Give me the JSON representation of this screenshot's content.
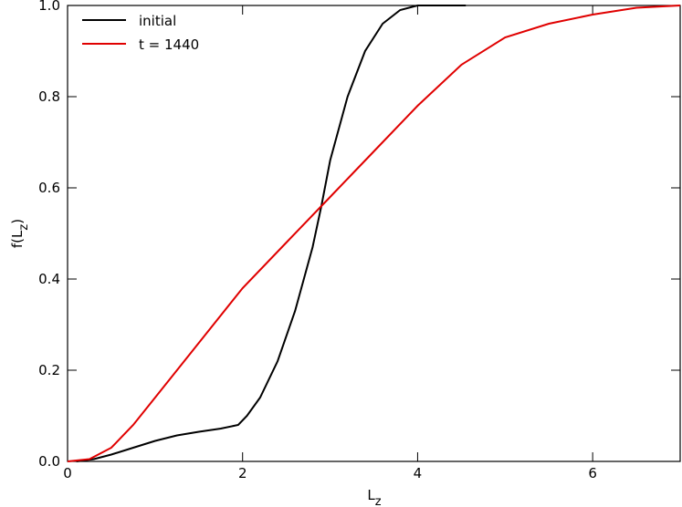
{
  "chart_data": {
    "type": "line",
    "xlabel": {
      "base": "L",
      "sub": "z"
    },
    "ylabel": {
      "prefix": "f(L",
      "sub": "z",
      "suffix": ")"
    },
    "xlim": [
      0,
      7
    ],
    "xticks": [
      0,
      2,
      4,
      6
    ],
    "ylim": [
      0,
      1
    ],
    "yticks": [
      {
        "value": 0,
        "label": "0.0"
      },
      0.2,
      0.4,
      0.6,
      0.8,
      {
        "value": 1,
        "label": "1.0"
      }
    ],
    "legend": "upper left",
    "series": [
      {
        "name": "initial",
        "color": "#000000",
        "x": [
          0.1,
          0.3,
          0.5,
          0.75,
          1.0,
          1.25,
          1.5,
          1.75,
          1.95,
          2.05,
          2.2,
          2.4,
          2.6,
          2.8,
          2.9,
          3.0,
          3.2,
          3.4,
          3.6,
          3.8,
          4.0,
          4.55
        ],
        "values": [
          0,
          0.005,
          0.015,
          0.03,
          0.045,
          0.057,
          0.065,
          0.072,
          0.08,
          0.1,
          0.14,
          0.22,
          0.33,
          0.47,
          0.56,
          0.66,
          0.8,
          0.9,
          0.96,
          0.99,
          1.0,
          1.0
        ]
      },
      {
        "name": "t = 1440",
        "color": "#e00000",
        "x": [
          0,
          0.25,
          0.5,
          0.75,
          1.0,
          1.5,
          2.0,
          2.5,
          3.0,
          3.5,
          4.0,
          4.5,
          5.0,
          5.5,
          6.0,
          6.5,
          7.0
        ],
        "values": [
          0,
          0.005,
          0.03,
          0.08,
          0.14,
          0.26,
          0.38,
          0.48,
          0.58,
          0.68,
          0.78,
          0.87,
          0.93,
          0.96,
          0.98,
          0.995,
          1.0
        ]
      }
    ]
  }
}
